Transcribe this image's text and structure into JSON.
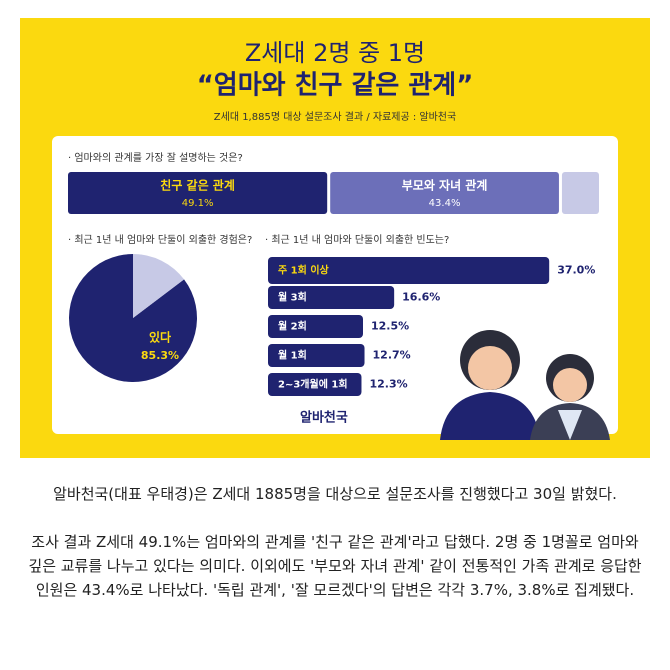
{
  "header": {
    "title": "Z세대 2명 중 1명",
    "subtitle": "“엄마와 친구 같은 관계”",
    "source": "Z세대 1,885명 대상 설문조사 결과 / 자료제공 : 알바천국"
  },
  "q1": {
    "question": "· 엄마와의 관계를 가장 잘 설명하는 것은?",
    "segments": [
      {
        "label": "친구 같은 관계",
        "value": 49.1,
        "value_label": "49.1%",
        "color": "#1f2370"
      },
      {
        "label": "부모와 자녀 관계",
        "value": 43.4,
        "value_label": "43.4%",
        "color": "#6c6fb9"
      },
      {
        "label": null,
        "value": 7.5,
        "value_label": null,
        "color": "#c7c9e6"
      }
    ]
  },
  "q2": {
    "question": "· 최근 1년 내 엄마와 단둘이 외출한 경험은?",
    "slices": [
      {
        "label": "있다",
        "value": 85.3,
        "value_label": "85.3%",
        "color": "#1f2370"
      },
      {
        "label": null,
        "value": 14.7,
        "value_label": null,
        "color": "#c7c9e6"
      }
    ]
  },
  "q3": {
    "question": "· 최근 1년 내 엄마와 단둘이 외출한 빈도는?",
    "bars": [
      {
        "label": "주 1회 이상",
        "value": 37.0,
        "value_label": "37.0%"
      },
      {
        "label": "월 3회",
        "value": 16.6,
        "value_label": "16.6%"
      },
      {
        "label": "월 2회",
        "value": 12.5,
        "value_label": "12.5%"
      },
      {
        "label": "월 1회",
        "value": 12.7,
        "value_label": "12.7%"
      },
      {
        "label": "2~3개월에 1회",
        "value": 12.3,
        "value_label": "12.3%"
      }
    ],
    "color": "#1f2370"
  },
  "logo": "알바천국",
  "article": {
    "paragraphs": [
      "알바천국(대표 우태경)은 Z세대 1885명을 대상으로 설문조사를 진행했다고 30일 밝혔다.",
      "조사 결과 Z세대 49.1%는 엄마와의 관계를 '친구 같은 관계'라고 답했다. 2명 중 1명꼴로 엄마와 깊은 교류를 나누고 있다는 의미다. 이외에도 '부모와 자녀 관계' 같이 전통적인 가족 관계로 응답한 인원은 43.4%로 나타났다. '독립 관계', '잘 모르겠다'의 답변은 각각 3.7%, 3.8%로 집계됐다."
    ]
  }
}
